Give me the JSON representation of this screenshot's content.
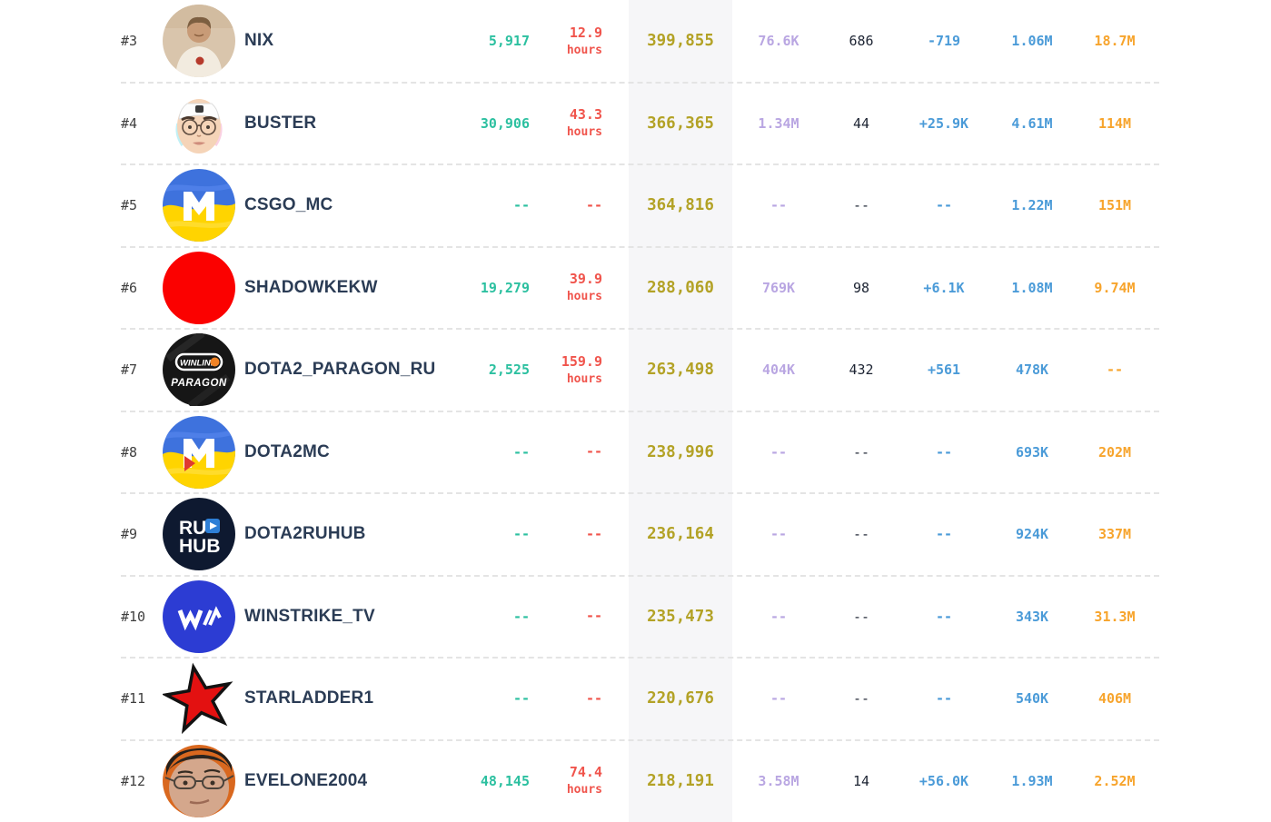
{
  "colors": {
    "green_stat": "#2cc0a0",
    "red_hours": "#f0544c",
    "main_stat_gold": "#b3a226",
    "purple_stat": "#b9a6e2",
    "dark_stat": "#1d2433",
    "blue_stat": "#4b9bd8",
    "orange_stat": "#f7a42c",
    "channel_name": "#2b3c55",
    "highlight_column_bg": "#f6f6f8",
    "row_divider": "#e4e4e4"
  },
  "rows": [
    {
      "rank": "#3",
      "name": "NIX",
      "avatar": "nix",
      "green": "5,917",
      "hours": "12.9",
      "hours_label": "hours",
      "main": "399,855",
      "purple": "76.6K",
      "dark": "686",
      "change": "-719",
      "blue": "1.06M",
      "orange": "18.7M"
    },
    {
      "rank": "#4",
      "name": "BUSTER",
      "avatar": "buster",
      "green": "30,906",
      "hours": "43.3",
      "hours_label": "hours",
      "main": "366,365",
      "purple": "1.34M",
      "dark": "44",
      "change": "+25.9K",
      "blue": "4.61M",
      "orange": "114M"
    },
    {
      "rank": "#5",
      "name": "CSGO_MC",
      "avatar": "ukraine-m",
      "green": "--",
      "hours": "--",
      "hours_label": "",
      "main": "364,816",
      "purple": "--",
      "dark": "--",
      "change": "--",
      "blue": "1.22M",
      "orange": "151M"
    },
    {
      "rank": "#6",
      "name": "SHADOWKEKW",
      "avatar": "red-circle",
      "green": "19,279",
      "hours": "39.9",
      "hours_label": "hours",
      "main": "288,060",
      "purple": "769K",
      "dark": "98",
      "change": "+6.1K",
      "blue": "1.08M",
      "orange": "9.74M"
    },
    {
      "rank": "#7",
      "name": "DOTA2_PARAGON_RU",
      "avatar": "winline-paragon",
      "green": "2,525",
      "hours": "159.9",
      "hours_label": "hours",
      "main": "263,498",
      "purple": "404K",
      "dark": "432",
      "change": "+561",
      "blue": "478K",
      "orange": "--"
    },
    {
      "rank": "#8",
      "name": "DOTA2MC",
      "avatar": "ukraine-m-play",
      "green": "--",
      "hours": "--",
      "hours_label": "",
      "main": "238,996",
      "purple": "--",
      "dark": "--",
      "change": "--",
      "blue": "693K",
      "orange": "202M"
    },
    {
      "rank": "#9",
      "name": "DOTA2RUHUB",
      "avatar": "ruhub",
      "green": "--",
      "hours": "--",
      "hours_label": "",
      "main": "236,164",
      "purple": "--",
      "dark": "--",
      "change": "--",
      "blue": "924K",
      "orange": "337M"
    },
    {
      "rank": "#10",
      "name": "WINSTRIKE_TV",
      "avatar": "winstrike",
      "green": "--",
      "hours": "--",
      "hours_label": "",
      "main": "235,473",
      "purple": "--",
      "dark": "--",
      "change": "--",
      "blue": "343K",
      "orange": "31.3M"
    },
    {
      "rank": "#11",
      "name": "STARLADDER1",
      "avatar": "star",
      "green": "--",
      "hours": "--",
      "hours_label": "",
      "main": "220,676",
      "purple": "--",
      "dark": "--",
      "change": "--",
      "blue": "540K",
      "orange": "406M"
    },
    {
      "rank": "#12",
      "name": "EVELONE2004",
      "avatar": "evelone",
      "green": "48,145",
      "hours": "74.4",
      "hours_label": "hours",
      "main": "218,191",
      "purple": "3.58M",
      "dark": "14",
      "change": "+56.0K",
      "blue": "1.93M",
      "orange": "2.52M"
    }
  ]
}
